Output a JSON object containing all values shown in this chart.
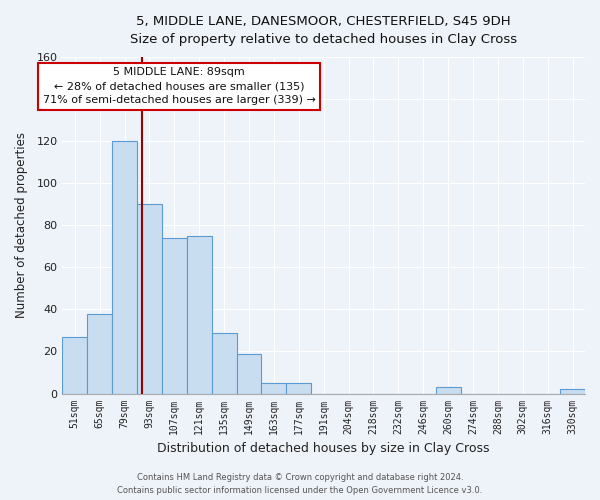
{
  "title": "5, MIDDLE LANE, DANESMOOR, CHESTERFIELD, S45 9DH",
  "subtitle": "Size of property relative to detached houses in Clay Cross",
  "xlabel": "Distribution of detached houses by size in Clay Cross",
  "ylabel": "Number of detached properties",
  "bar_labels": [
    "51sqm",
    "65sqm",
    "79sqm",
    "93sqm",
    "107sqm",
    "121sqm",
    "135sqm",
    "149sqm",
    "163sqm",
    "177sqm",
    "191sqm",
    "204sqm",
    "218sqm",
    "232sqm",
    "246sqm",
    "260sqm",
    "274sqm",
    "288sqm",
    "302sqm",
    "316sqm",
    "330sqm"
  ],
  "bar_values": [
    27,
    38,
    120,
    90,
    74,
    75,
    29,
    19,
    5,
    5,
    0,
    0,
    0,
    0,
    0,
    3,
    0,
    0,
    0,
    0,
    2
  ],
  "bar_color": "#c9ddf0",
  "bar_edge_color": "#5b9bd5",
  "vline_color": "#990000",
  "vline_x_index": 2.72,
  "ylim": [
    0,
    160
  ],
  "yticks": [
    0,
    20,
    40,
    60,
    80,
    100,
    120,
    140,
    160
  ],
  "annotation_title": "5 MIDDLE LANE: 89sqm",
  "annotation_line1": "← 28% of detached houses are smaller (135)",
  "annotation_line2": "71% of semi-detached houses are larger (339) →",
  "annotation_box_facecolor": "#ffffff",
  "annotation_box_edgecolor": "#cc0000",
  "footer1": "Contains HM Land Registry data © Crown copyright and database right 2024.",
  "footer2": "Contains public sector information licensed under the Open Government Licence v3.0.",
  "background_color": "#eef2f9",
  "grid_color": "#ffffff"
}
